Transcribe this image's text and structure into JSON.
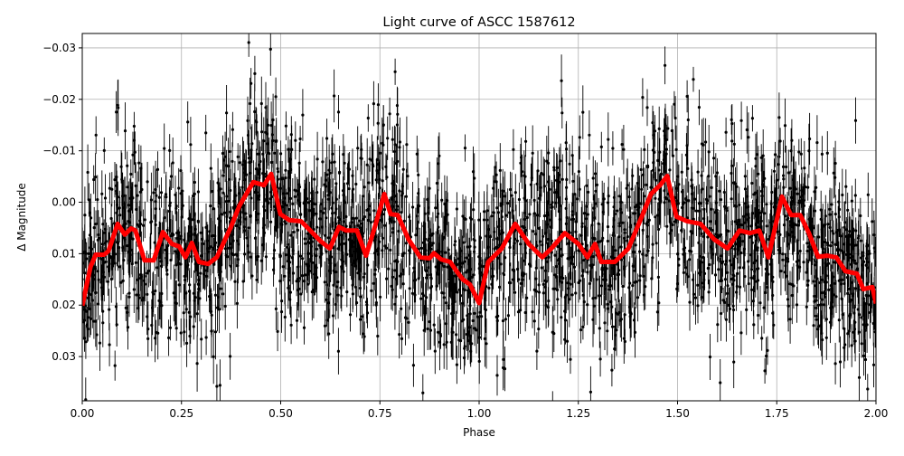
{
  "chart_data": {
    "type": "scatter",
    "title": "Light curve of ASCC 1587612",
    "xlabel": "Phase",
    "ylabel": "Δ Magnitude",
    "xlim": [
      0.0,
      2.0
    ],
    "ylim": [
      0.0386,
      -0.0328
    ],
    "y_inverted": true,
    "grid": true,
    "x_ticks": [
      "0.00",
      "0.25",
      "0.50",
      "0.75",
      "1.00",
      "1.25",
      "1.50",
      "1.75",
      "2.00"
    ],
    "x_tick_values": [
      0,
      0.25,
      0.5,
      0.75,
      1.0,
      1.25,
      1.5,
      1.75,
      2.0
    ],
    "y_ticks": [
      "−0.03",
      "−0.02",
      "−0.01",
      "0.00",
      "0.01",
      "0.02",
      "0.03"
    ],
    "y_tick_values": [
      -0.03,
      -0.02,
      -0.01,
      0,
      0.01,
      0.02,
      0.03
    ],
    "observations": {
      "color": "#000000",
      "marker": "dot with vertical error bar",
      "scatter_spread": 0.009,
      "typical_error": 0.004
    },
    "smoothed_curve": {
      "color": "#ff0000",
      "x": [
        0.0,
        0.021,
        0.034,
        0.055,
        0.066,
        0.089,
        0.107,
        0.123,
        0.134,
        0.157,
        0.18,
        0.203,
        0.226,
        0.244,
        0.26,
        0.276,
        0.294,
        0.317,
        0.339,
        0.374,
        0.396,
        0.431,
        0.458,
        0.476,
        0.499,
        0.522,
        0.551,
        0.567,
        0.601,
        0.624,
        0.647,
        0.665,
        0.692,
        0.715,
        0.738,
        0.761,
        0.777,
        0.795,
        0.822,
        0.852,
        0.875,
        0.886,
        0.904,
        0.927,
        0.943,
        0.959,
        0.977,
        1.0,
        1.023,
        1.057,
        1.091,
        1.125,
        1.159,
        1.182,
        1.216,
        1.25,
        1.273,
        1.292,
        1.308,
        1.342,
        1.376,
        1.41,
        1.433,
        1.456,
        1.474,
        1.497,
        1.524,
        1.558,
        1.592,
        1.626,
        1.656,
        1.683,
        1.706,
        1.729,
        1.763,
        1.786,
        1.809,
        1.831,
        1.854,
        1.877,
        1.9,
        1.923,
        1.952,
        1.968,
        1.991,
        2.0
      ],
      "y": [
        0.0201,
        0.0125,
        0.0102,
        0.0102,
        0.0095,
        0.0042,
        0.0063,
        0.0051,
        0.0055,
        0.0113,
        0.0113,
        0.0058,
        0.0081,
        0.0086,
        0.0107,
        0.0079,
        0.0116,
        0.012,
        0.0107,
        0.0049,
        0.0007,
        -0.0039,
        -0.0033,
        -0.0055,
        0.0023,
        0.0035,
        0.0037,
        0.0049,
        0.0076,
        0.009,
        0.0048,
        0.0055,
        0.0055,
        0.0104,
        0.0046,
        -0.0016,
        0.0023,
        0.0025,
        0.0072,
        0.0107,
        0.0109,
        0.0099,
        0.0111,
        0.0116,
        0.0134,
        0.015,
        0.016,
        0.0196,
        0.0116,
        0.009,
        0.0042,
        0.0081,
        0.0107,
        0.009,
        0.006,
        0.0081,
        0.0107,
        0.0081,
        0.0116,
        0.0116,
        0.009,
        0.0028,
        -0.0016,
        -0.0033,
        -0.0051,
        0.0028,
        0.0037,
        0.0042,
        0.0072,
        0.009,
        0.0055,
        0.006,
        0.0055,
        0.0107,
        -0.0011,
        0.0025,
        0.0025,
        0.006,
        0.0106,
        0.0104,
        0.0107,
        0.0134,
        0.0139,
        0.0169,
        0.0165,
        0.0197
      ]
    }
  }
}
